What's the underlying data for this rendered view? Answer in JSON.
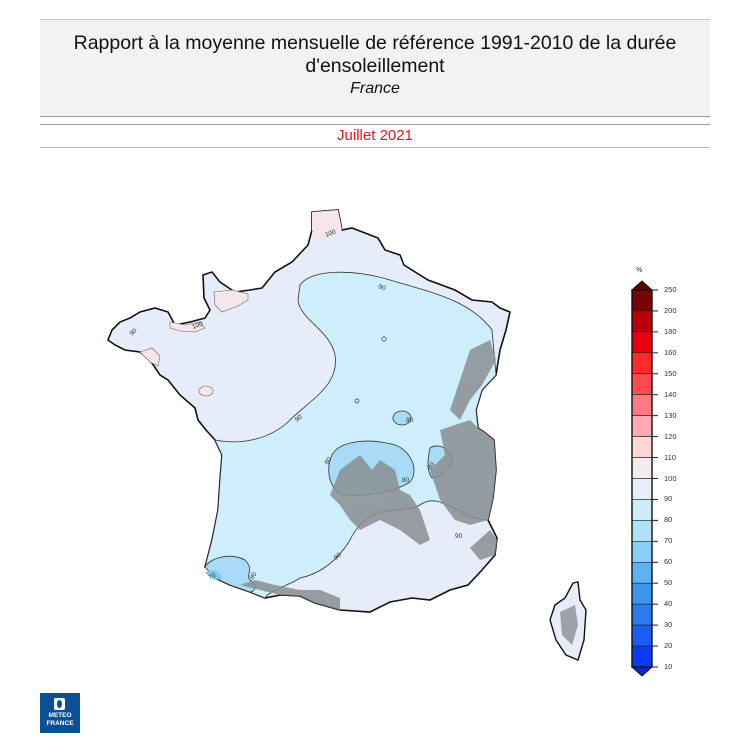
{
  "header": {
    "title": "Rapport à la moyenne mensuelle de référence 1991-2010 de la durée d'ensoleillement",
    "subtitle": "France",
    "date": "Juillet 2021"
  },
  "legend": {
    "unit": "%",
    "ticks": [
      "250",
      "200",
      "180",
      "160",
      "150",
      "140",
      "130",
      "120",
      "110",
      "100",
      "90",
      "80",
      "70",
      "60",
      "50",
      "40",
      "30",
      "20",
      "10"
    ],
    "colors": [
      "#7a0008",
      "#b8000c",
      "#e8000c",
      "#ff2a2a",
      "#ff4a52",
      "#ff7a80",
      "#ffaab0",
      "#ffd6d6",
      "#f4ecef",
      "#e8eef8",
      "#d0ecf8",
      "#b0e2f8",
      "#88d0fa",
      "#5ab2f0",
      "#3a96ec",
      "#2a7cee",
      "#1a5cf4",
      "#0a3cf8"
    ],
    "top_arrow_color": "#5a0006",
    "bottom_arrow_color": "#0a2ac8"
  },
  "map": {
    "region": "France métropolitaine + Corse",
    "contour_labels": [
      "100",
      "100",
      "90",
      "90",
      "90",
      "90",
      "90",
      "80",
      "80",
      "80",
      "90",
      "90",
      "90",
      "80",
      "90"
    ],
    "colors": {
      "above_100": "#f4e6ea",
      "90_100": "#e6edf8",
      "80_90": "#cdeefa",
      "70_80": "#a8dcf6",
      "60_70": "#7cc8f4",
      "relief": "#8a8e92",
      "coast": "#111111"
    }
  },
  "logo": {
    "line1": "METEO",
    "line2": "FRANCE",
    "color": "#0b4f94"
  }
}
